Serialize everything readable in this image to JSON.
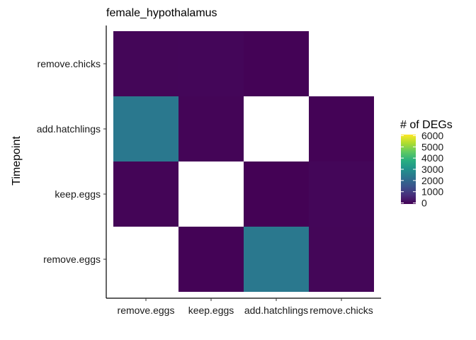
{
  "chart_data": {
    "type": "heatmap",
    "title": "female_hypothalamus",
    "xlabel": "",
    "ylabel": "Timepoint",
    "x_categories": [
      "remove.eggs",
      "keep.eggs",
      "add.hatchlings",
      "remove.chicks"
    ],
    "y_categories": [
      "remove.eggs",
      "keep.eggs",
      "add.hatchlings",
      "remove.chicks"
    ],
    "cells": [
      {
        "x": "keep.eggs",
        "y": "remove.eggs",
        "value": 40
      },
      {
        "x": "add.hatchlings",
        "y": "remove.eggs",
        "value": 2400
      },
      {
        "x": "remove.chicks",
        "y": "remove.eggs",
        "value": 80
      },
      {
        "x": "remove.eggs",
        "y": "keep.eggs",
        "value": 60
      },
      {
        "x": "add.hatchlings",
        "y": "keep.eggs",
        "value": 20
      },
      {
        "x": "remove.chicks",
        "y": "keep.eggs",
        "value": 90
      },
      {
        "x": "remove.eggs",
        "y": "add.hatchlings",
        "value": 2400
      },
      {
        "x": "keep.eggs",
        "y": "add.hatchlings",
        "value": 60
      },
      {
        "x": "remove.chicks",
        "y": "add.hatchlings",
        "value": 30
      },
      {
        "x": "remove.eggs",
        "y": "remove.chicks",
        "value": 80
      },
      {
        "x": "keep.eggs",
        "y": "remove.chicks",
        "value": 90
      },
      {
        "x": "add.hatchlings",
        "y": "remove.chicks",
        "value": 30
      }
    ],
    "legend": {
      "title": "# of DEGs",
      "ticks": [
        "0",
        "1000",
        "2000",
        "3000",
        "4000",
        "5000",
        "6000"
      ],
      "min": 0,
      "max": 6000,
      "colormap": "viridis",
      "placement": "right"
    },
    "grid": false
  }
}
